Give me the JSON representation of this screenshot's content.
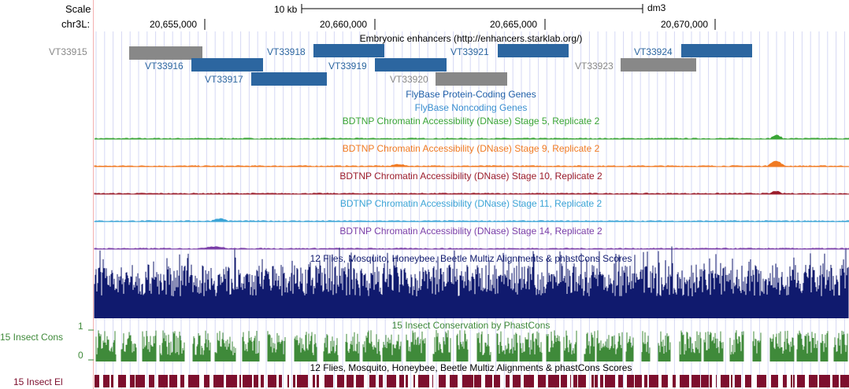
{
  "header": {
    "scale_label": "Scale",
    "chrom_label": "chr3L:",
    "scale_bar_text": "10 kb",
    "assembly": "dm3",
    "positions": [
      "20,655,000",
      "20,660,000",
      "20,665,000",
      "20,670,000"
    ]
  },
  "tracks": {
    "enhancers": {
      "title": "Embryonic enhancers (http://enhancers.starklab.org/)",
      "items": [
        {
          "name": "VT33915",
          "color": "#888888"
        },
        {
          "name": "VT33916",
          "color": "#2c66a0"
        },
        {
          "name": "VT33917",
          "color": "#2c66a0"
        },
        {
          "name": "VT33918",
          "color": "#2c66a0"
        },
        {
          "name": "VT33919",
          "color": "#2c66a0"
        },
        {
          "name": "VT33920",
          "color": "#888888"
        },
        {
          "name": "VT33921",
          "color": "#2c66a0"
        },
        {
          "name": "VT33923",
          "color": "#888888"
        },
        {
          "name": "VT33924",
          "color": "#2c66a0"
        }
      ]
    },
    "flybase_coding": {
      "title": "FlyBase Protein-Coding Genes",
      "color": "#1f5fa8"
    },
    "flybase_noncoding": {
      "title": "FlyBase Noncoding Genes",
      "color": "#3a8fd0"
    },
    "dnase": [
      {
        "title": "BDTNP Chromatin Accessibility (DNase) Stage 5, Replicate 2",
        "color": "#3aa536"
      },
      {
        "title": "BDTNP Chromatin Accessibility (DNase) Stage 9, Replicate 2",
        "color": "#f07a22"
      },
      {
        "title": "BDTNP Chromatin Accessibility (DNase) Stage 10, Replicate 2",
        "color": "#9b1c2b"
      },
      {
        "title": "BDTNP Chromatin Accessibility (DNase) Stage 11, Replicate 2",
        "color": "#3ba4d6"
      },
      {
        "title": "BDTNP Chromatin Accessibility (DNase) Stage 14, Replicate 2",
        "color": "#7b3fa8"
      }
    ],
    "multiz": {
      "title": "12 Flies, Mosquito, Honeybee, Beetle Multiz Alignments & phastCons Scores",
      "color": "#101a6e"
    },
    "cons": {
      "title": "15 Insect Conservation by PhastCons",
      "side_label": "15 Insect Cons",
      "max_label": "1",
      "min_label": "0",
      "color": "#3f8a3a"
    },
    "elements": {
      "title": "12 Flies, Mosquito, Honeybee, Beetle Multiz Alignments & phastCons Scores",
      "side_label": "15 Insect El",
      "color": "#7d0f2e"
    }
  }
}
